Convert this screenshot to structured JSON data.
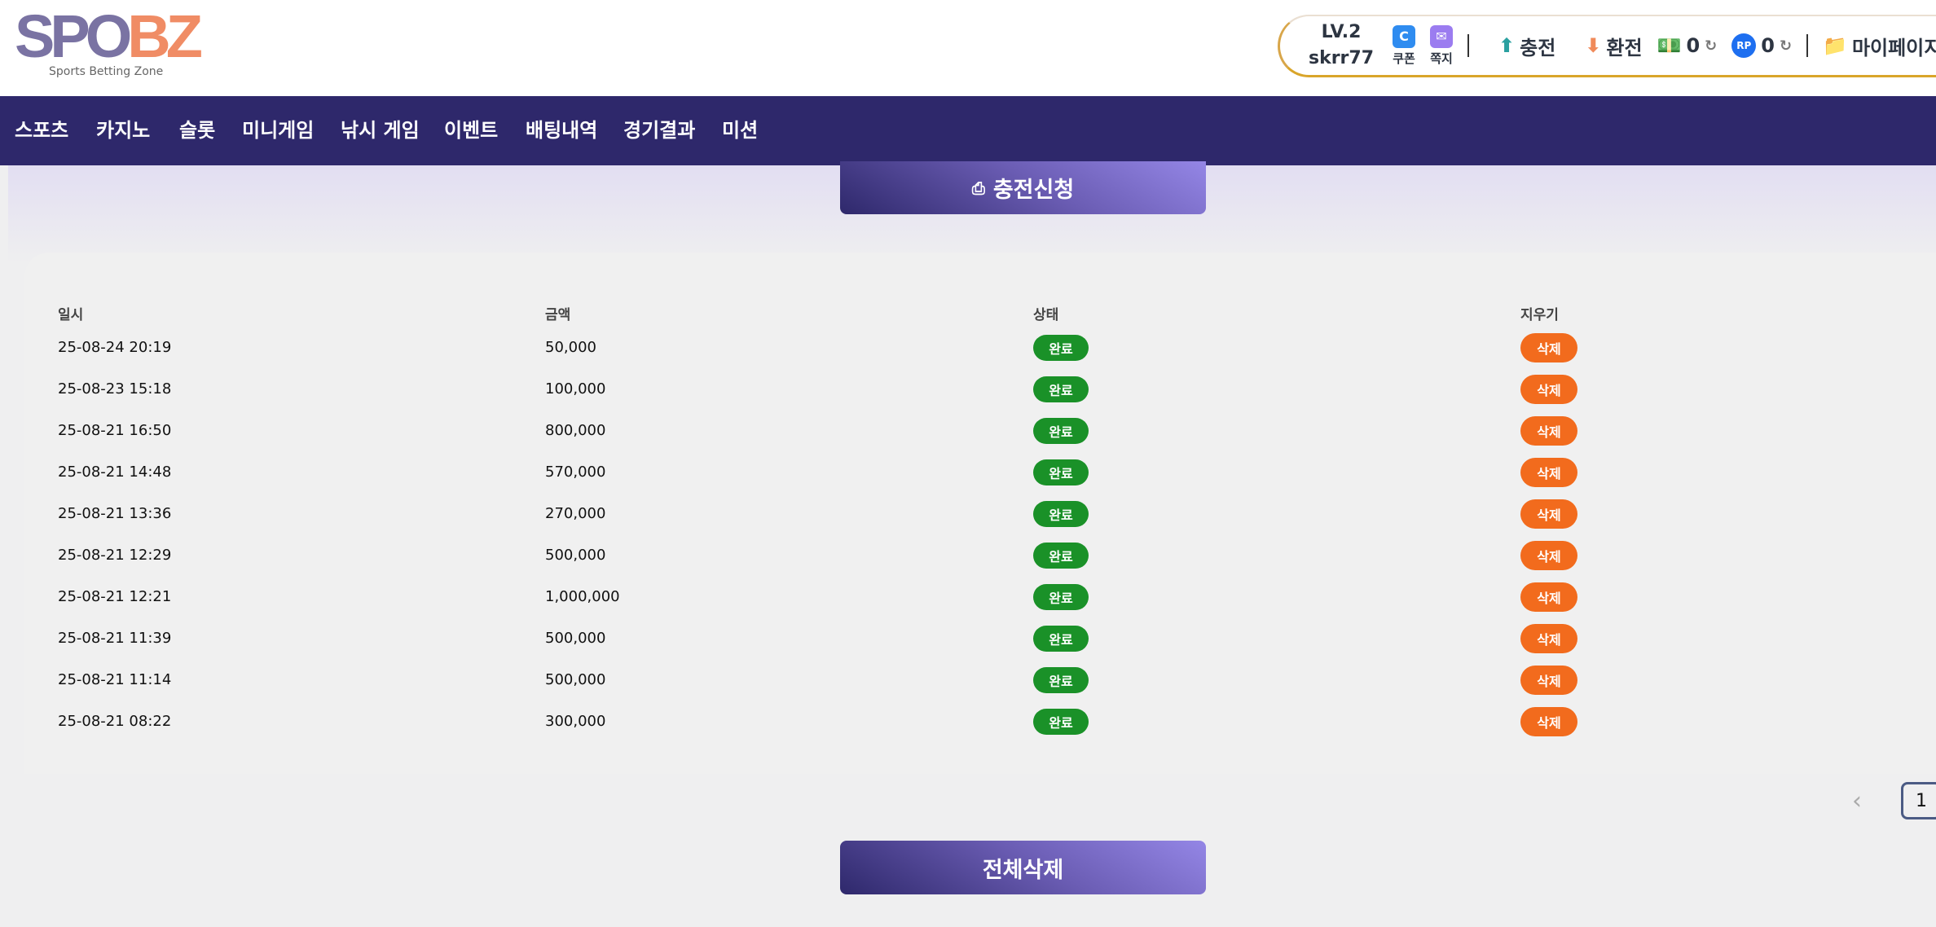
{
  "header": {
    "logo_text_a": "SPO",
    "logo_text_b": "BZ",
    "logo_sub": "Sports Betting Zone",
    "level": "LV.2",
    "username": "skrr77",
    "coupon": "쿠폰",
    "message": "쪽지",
    "deposit": "충전",
    "withdraw": "환전",
    "cash": "0",
    "points": "0",
    "mypage": "마이페이지"
  },
  "nav": [
    "스포츠",
    "카지노",
    "슬롯",
    "미니게임",
    "낚시 게임",
    "이벤트",
    "배팅내역",
    "경기결과",
    "미션"
  ],
  "request_button": "충전신청",
  "table": {
    "headers": [
      "일시",
      "금액",
      "상태",
      "지우기"
    ],
    "rows": [
      {
        "date": "25-08-24 20:19",
        "amount": "50,000",
        "status": "완료",
        "action": "삭제"
      },
      {
        "date": "25-08-23 15:18",
        "amount": "100,000",
        "status": "완료",
        "action": "삭제"
      },
      {
        "date": "25-08-21 16:50",
        "amount": "800,000",
        "status": "완료",
        "action": "삭제"
      },
      {
        "date": "25-08-21 14:48",
        "amount": "570,000",
        "status": "완료",
        "action": "삭제"
      },
      {
        "date": "25-08-21 13:36",
        "amount": "270,000",
        "status": "완료",
        "action": "삭제"
      },
      {
        "date": "25-08-21 12:29",
        "amount": "500,000",
        "status": "완료",
        "action": "삭제"
      },
      {
        "date": "25-08-21 12:21",
        "amount": "1,000,000",
        "status": "완료",
        "action": "삭제"
      },
      {
        "date": "25-08-21 11:39",
        "amount": "500,000",
        "status": "완료",
        "action": "삭제"
      },
      {
        "date": "25-08-21 11:14",
        "amount": "500,000",
        "status": "완료",
        "action": "삭제"
      },
      {
        "date": "25-08-21 08:22",
        "amount": "300,000",
        "status": "완료",
        "action": "삭제"
      }
    ]
  },
  "pagination": {
    "prev": "‹",
    "current": "1"
  },
  "delete_all_button": "전체삭제"
}
